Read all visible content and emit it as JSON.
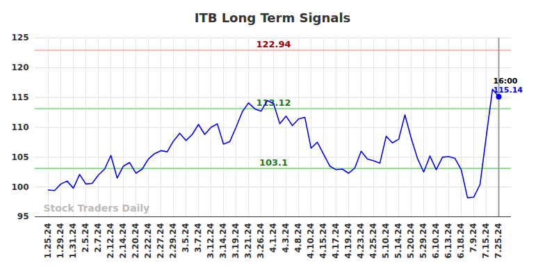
{
  "chart_data": {
    "type": "line",
    "title": "ITB Long Term Signals",
    "categories": [
      "1.25.24",
      null,
      "1.29.24",
      null,
      "1.31.24",
      null,
      "2.5.24",
      null,
      "2.7.24",
      null,
      "2.12.24",
      null,
      "2.14.24",
      null,
      "2.20.24",
      null,
      "2.22.24",
      null,
      "2.27.24",
      null,
      "2.29.24",
      null,
      "3.5.24",
      null,
      "3.7.24",
      null,
      "3.12.24",
      null,
      "3.14.24",
      null,
      "3.19.24",
      null,
      "3.21.24",
      null,
      "3.26.24",
      null,
      "4.1.24",
      null,
      "4.3.24",
      null,
      "4.8.24",
      null,
      "4.10.24",
      null,
      "4.15.24",
      null,
      "4.17.24",
      null,
      "4.19.24",
      null,
      "4.23.24",
      null,
      "4.25.24",
      null,
      "5.10.24",
      null,
      "5.14.24",
      null,
      "5.20.24",
      null,
      "5.29.24",
      null,
      "6.10.24",
      null,
      "6.13.24",
      null,
      "6.18.24",
      null,
      "7.9.24",
      null,
      "7.15.24",
      null,
      "7.25.24"
    ],
    "values": [
      99.5,
      99.4,
      100.5,
      101.0,
      99.8,
      102.1,
      100.5,
      100.6,
      102.0,
      103.0,
      105.3,
      101.5,
      103.5,
      104.1,
      102.3,
      103.0,
      104.7,
      105.6,
      106.1,
      105.9,
      107.7,
      109.0,
      107.8,
      108.8,
      110.5,
      108.8,
      110.0,
      110.6,
      107.2,
      107.6,
      110.0,
      112.6,
      114.1,
      113.1,
      112.7,
      114.5,
      114.0,
      110.6,
      111.9,
      110.3,
      111.4,
      111.7,
      106.5,
      107.5,
      105.5,
      103.5,
      102.9,
      103.0,
      102.3,
      103.2,
      106.0,
      104.7,
      104.4,
      104.0,
      108.5,
      107.4,
      108.0,
      112.1,
      108.2,
      104.8,
      102.5,
      105.2,
      102.9,
      105.0,
      105.1,
      104.8,
      102.9,
      98.2,
      98.3,
      100.4,
      108.5,
      116.4,
      115.14
    ],
    "color": "#0000ff",
    "ylim": [
      95,
      125
    ],
    "yticks": [
      95,
      100,
      105,
      110,
      115,
      120,
      125
    ],
    "grid": true,
    "reference_lines": [
      {
        "value": 122.94,
        "color": "#ffb3b3"
      },
      {
        "value": 113.12,
        "color": "#90e090"
      },
      {
        "value": 103.1,
        "color": "#90e090"
      }
    ],
    "annotations": [
      "16:00"
    ],
    "watermark": "Stock Traders Daily"
  }
}
